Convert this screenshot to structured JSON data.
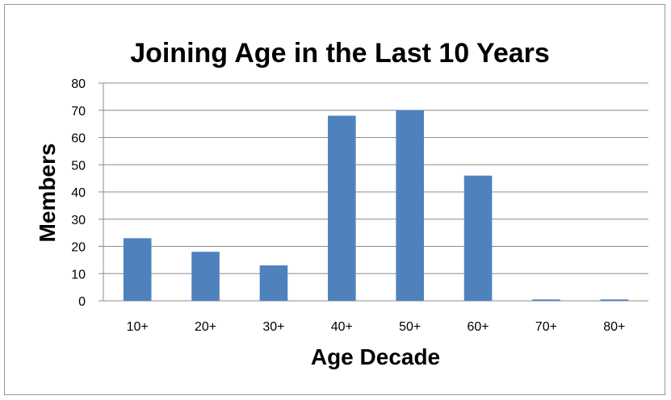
{
  "chart_data": {
    "type": "bar",
    "title": "Joining Age in the Last 10 Years",
    "xlabel": "Age Decade",
    "ylabel": "Members",
    "categories": [
      "10+",
      "20+",
      "30+",
      "40+",
      "50+",
      "60+",
      "70+",
      "80+"
    ],
    "values": [
      23,
      18,
      13,
      68,
      70,
      46,
      0.5,
      0.5
    ],
    "ylim": [
      0,
      80
    ],
    "yticks": [
      0,
      10,
      20,
      30,
      40,
      50,
      60,
      70,
      80
    ],
    "grid": true,
    "legend": "none",
    "bar_color": "#4f81bd"
  }
}
